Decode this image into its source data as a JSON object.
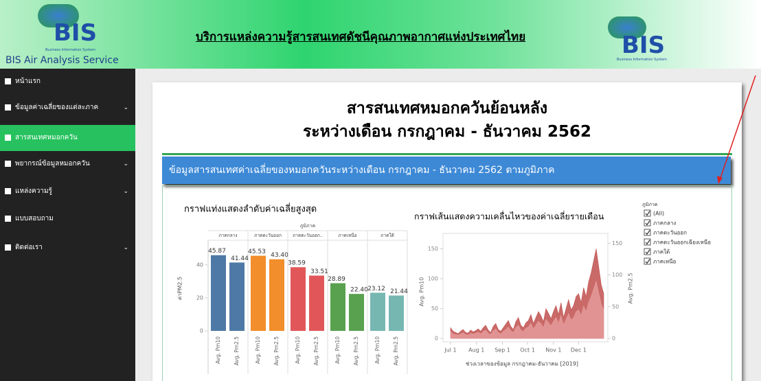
{
  "header": {
    "logo_text": "BIS",
    "logo_subtext": "Business Information System",
    "service_name": "BIS Air Analysis Service",
    "title": "บริการแหล่งความรู้สารสนเทศดัชนีคุณภาพอากาศแห่งประเทศไทย",
    "right_logo_text": "BIS",
    "right_logo_subtext": "Business Information System"
  },
  "sidebar": {
    "items": [
      "หน้าแรก",
      "ข้อมูลค่าเฉลี่ยของแต่ละภาค",
      "สารสนเทศหมอกควัน",
      "พยากรณ์ข้อมูลหมอกควัน",
      "แหล่งความรู้",
      "แบบสอบถาม",
      "ติดต่อเรา"
    ]
  },
  "page": {
    "title_line1": "สารสนเทศหมอกควันย้อนหลัง",
    "title_line2": "ระหว่างเดือน กรกฎาคม - ธันวาคม 2562",
    "banner": "ข้อมูลสารสนเทศค่าเฉลี่ยของหมอกควันระหว่างเดือน กรกฎาคม - ธันวาคม 2562 ตามภูมิภาค"
  },
  "bar_chart": {
    "type": "bar",
    "title": "กราฟแท่งแสดงลำดับค่าเฉลี่ยสูงสุด",
    "facet_label": "ภูมิภาค",
    "y_label": "ค่าPM2.5",
    "categories": [
      "ภาคกลาง",
      "ภาคตะวันออก",
      "ภาคตะวันออก..",
      "ภาคเหนือ",
      "ภาคใต้"
    ],
    "colors": [
      "#4e79a7",
      "#f28e2b",
      "#e15759",
      "#59a14f",
      "#76b7b2"
    ],
    "series": [
      {
        "name": "Avg. Pm10",
        "values": [
          45.87,
          45.53,
          38.59,
          28.89,
          23.12
        ],
        "value_labels": [
          "45.87",
          "45.53",
          "38.59",
          "28.89",
          "23.12"
        ]
      },
      {
        "name": "Avg. Pm2.5",
        "values": [
          41.44,
          43.4,
          33.51,
          22.4,
          21.44
        ],
        "value_labels": [
          "41.44",
          "43.40",
          "33.51",
          "22.40",
          "21.44"
        ]
      }
    ],
    "ylim": [
      0,
      52
    ],
    "yticks": [
      0,
      20,
      40
    ]
  },
  "line_chart": {
    "type": "area",
    "title": "กราฟเส้นแสดงความเคลื่นไหวของค่าเฉลี่ยรายเดือน",
    "x_label": "ช่วงเวลาของข้อมูล กรกฎาคม-ธันวาคม [2019]",
    "y_label": "Avg. Pm10",
    "y2_label": "Avg. Pm2.5",
    "xlim": [
      0,
      183
    ],
    "xticks": [
      {
        "value": 0,
        "label": "Jul 1"
      },
      {
        "value": 31,
        "label": "Aug 1"
      },
      {
        "value": 62,
        "label": "Sep 1"
      },
      {
        "value": 92,
        "label": "Oct 1"
      },
      {
        "value": 123,
        "label": "Nov 1"
      },
      {
        "value": 153,
        "label": "Dec 1"
      }
    ],
    "ylim": [
      0,
      170
    ],
    "yticks": [
      0,
      50,
      100,
      150
    ],
    "y2lim": [
      0,
      160
    ],
    "y2ticks": [
      0,
      50,
      100,
      150
    ],
    "x": [
      0,
      3,
      6,
      9,
      12,
      15,
      18,
      21,
      24,
      27,
      30,
      33,
      36,
      39,
      42,
      45,
      48,
      51,
      54,
      57,
      60,
      63,
      66,
      69,
      72,
      75,
      78,
      81,
      84,
      87,
      90,
      93,
      96,
      99,
      102,
      105,
      108,
      111,
      114,
      117,
      120,
      123,
      126,
      129,
      132,
      135,
      138,
      141,
      144,
      147,
      150,
      153,
      156,
      159,
      162,
      165,
      168,
      171,
      174,
      177,
      180,
      183
    ],
    "series": [
      {
        "name": "Avg. Pm10",
        "color": "#c0504d",
        "values": [
          18,
          12,
          10,
          8,
          12,
          15,
          10,
          9,
          14,
          11,
          13,
          16,
          12,
          18,
          22,
          14,
          10,
          20,
          25,
          15,
          12,
          18,
          24,
          30,
          20,
          15,
          28,
          35,
          22,
          18,
          26,
          30,
          40,
          25,
          35,
          45,
          38,
          28,
          50,
          42,
          33,
          45,
          55,
          40,
          60,
          35,
          50,
          65,
          48,
          55,
          70,
          75,
          60,
          85,
          70,
          95,
          110,
          130,
          150,
          120,
          90,
          75
        ]
      },
      {
        "name": "Avg. Pm2.5",
        "color": "#e8a0a0",
        "axis": "y2",
        "values": [
          11,
          7,
          6,
          5,
          7,
          9,
          6,
          5,
          8,
          7,
          8,
          10,
          7,
          11,
          13,
          8,
          6,
          12,
          15,
          9,
          7,
          11,
          14,
          18,
          12,
          9,
          17,
          21,
          13,
          11,
          16,
          18,
          24,
          15,
          21,
          27,
          23,
          17,
          30,
          25,
          20,
          27,
          33,
          24,
          36,
          21,
          30,
          39,
          29,
          33,
          42,
          45,
          36,
          51,
          42,
          57,
          66,
          78,
          90,
          72,
          54,
          45
        ]
      }
    ]
  },
  "filter": {
    "title": "ภูมิภาค",
    "options": [
      "(All)",
      "ภาคกลาง",
      "ภาคตะวันออก",
      "ภาคตะวันออกเฉียงเหนือ",
      "ภาคใต้",
      "ภาคเหนือ"
    ]
  }
}
